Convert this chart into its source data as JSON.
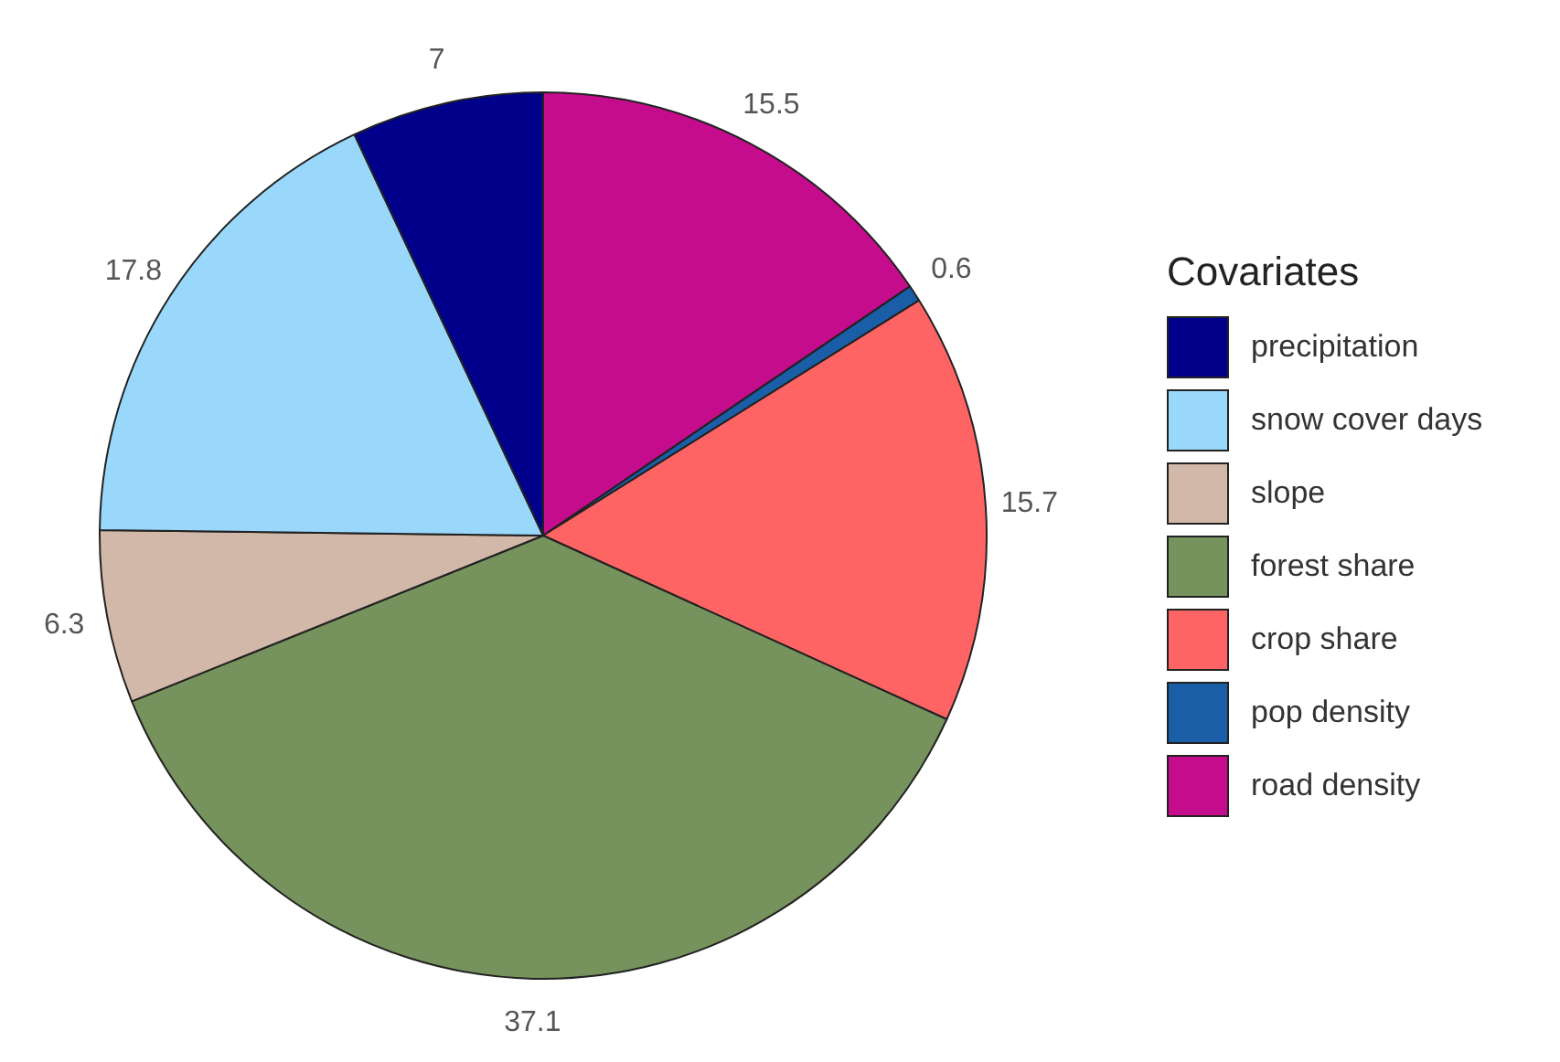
{
  "chart_data": {
    "type": "pie",
    "legend_title": "Covariates",
    "legend": "right",
    "data_labels": true,
    "categories": [
      "precipitation",
      "snow cover days",
      "slope",
      "forest share",
      "crop share",
      "pop density",
      "road density"
    ],
    "values": [
      7,
      17.8,
      6.3,
      37.1,
      15.7,
      0.6,
      15.5
    ],
    "colors": [
      "#00008b",
      "#9ad8fb",
      "#d2b8a8",
      "#76925d",
      "#ff6464",
      "#1a5ea8",
      "#c40c8c"
    ]
  }
}
